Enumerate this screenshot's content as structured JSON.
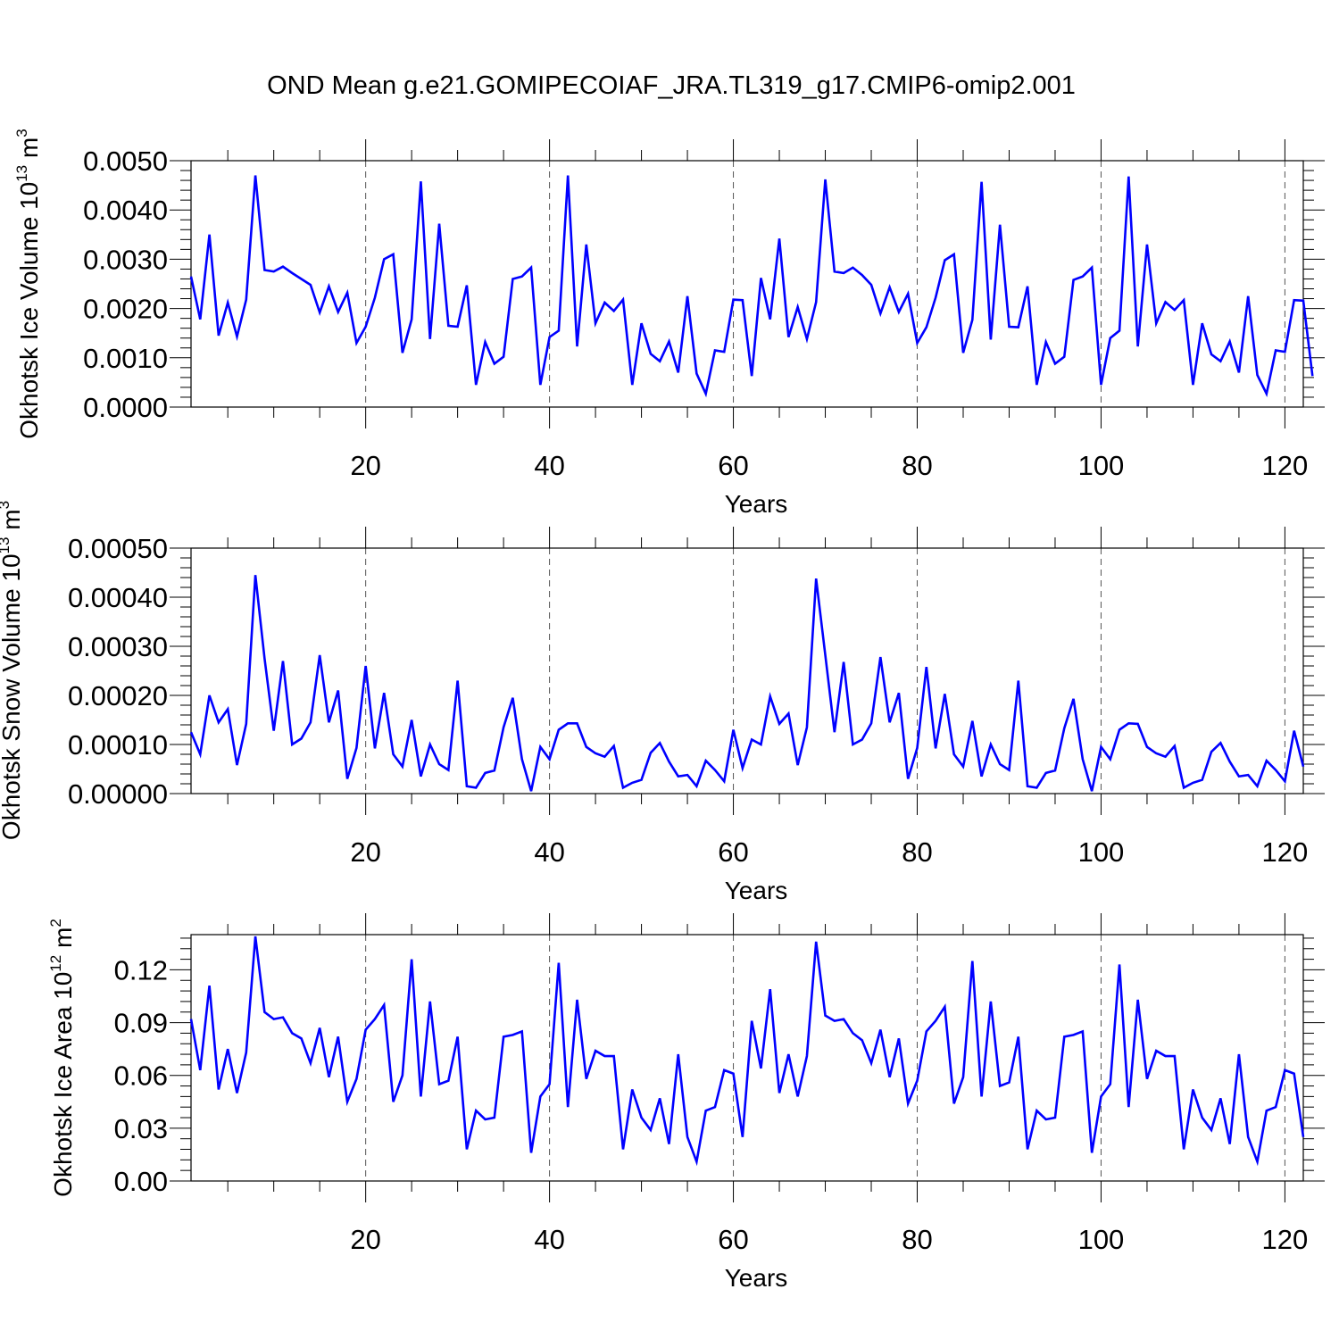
{
  "title": "OND Mean g.e21.GOMIPECOIAF_JRA.TL319_g17.CMIP6-omip2.001",
  "colors": {
    "series": "#0000ff",
    "axes": "#000000",
    "grid": "#555555"
  },
  "chart_data": [
    {
      "type": "line",
      "ylabel": {
        "main": "Okhotsk Ice Volume 10",
        "exp": "13",
        "unit": " m",
        "unit_exp": "3"
      },
      "xlabel": "Years",
      "x_start": 1,
      "xlim": [
        1,
        122
      ],
      "ylim": [
        0,
        0.005
      ],
      "yticks": [
        "0.0000",
        "0.0010",
        "0.0020",
        "0.0030",
        "0.0040",
        "0.0050"
      ],
      "xticks": [
        "20",
        "40",
        "60",
        "80",
        "100",
        "120"
      ],
      "grid": "x-dashed",
      "values": [
        0.00265,
        0.00178,
        0.0035,
        0.00145,
        0.00212,
        0.00143,
        0.00218,
        0.0047,
        0.00278,
        0.00275,
        0.00285,
        0.00272,
        0.0026,
        0.00248,
        0.00192,
        0.00245,
        0.00193,
        0.00232,
        0.0013,
        0.00163,
        0.00222,
        0.003,
        0.0031,
        0.0011,
        0.00178,
        0.00458,
        0.00138,
        0.00372,
        0.00165,
        0.00163,
        0.00247,
        0.00045,
        0.00132,
        0.00088,
        0.00102,
        0.0026,
        0.00265,
        0.00283,
        0.00045,
        0.00142,
        0.00155,
        0.0047,
        0.00123,
        0.0033,
        0.0017,
        0.00212,
        0.00195,
        0.00218,
        0.00045,
        0.0017,
        0.00108,
        0.00093,
        0.00133,
        0.0007,
        0.00225,
        0.00068,
        0.00027,
        0.00115,
        0.00112,
        0.00218,
        0.00217,
        0.00063,
        0.00262,
        0.00178,
        0.00342,
        0.00142,
        0.00203,
        0.00138,
        0.00213,
        0.00462,
        0.00275,
        0.00272,
        0.00283,
        0.00268,
        0.00248,
        0.0019,
        0.00243,
        0.00193,
        0.0023,
        0.0013,
        0.00162,
        0.00222,
        0.00298,
        0.0031,
        0.0011,
        0.00177,
        0.00457,
        0.00137,
        0.0037,
        0.00163,
        0.00162,
        0.00245,
        0.00045,
        0.00132,
        0.00088,
        0.00102,
        0.00258,
        0.00265,
        0.00283,
        0.00045,
        0.0014,
        0.00155,
        0.00468,
        0.00123,
        0.0033,
        0.0017,
        0.00213,
        0.00197,
        0.00217,
        0.00045,
        0.0017,
        0.00107,
        0.00093,
        0.00133,
        0.0007,
        0.00225,
        0.00065,
        0.00027,
        0.00115,
        0.00112,
        0.00217,
        0.00216,
        0.00063
      ]
    },
    {
      "type": "line",
      "ylabel": {
        "main": "Okhotsk Snow Volume 10",
        "exp": "13",
        "unit": " m",
        "unit_exp": "3"
      },
      "xlabel": "Years",
      "x_start": 1,
      "xlim": [
        1,
        122
      ],
      "ylim": [
        0,
        0.0005
      ],
      "yticks": [
        "0.00000",
        "0.00010",
        "0.00020",
        "0.00030",
        "0.00040",
        "0.00050"
      ],
      "xticks": [
        "20",
        "40",
        "60",
        "80",
        "100",
        "120"
      ],
      "grid": "x-dashed",
      "values": [
        0.000125,
        8e-05,
        0.0002,
        0.000145,
        0.000172,
        5.8e-05,
        0.000142,
        0.000445,
        0.000275,
        0.000128,
        0.00027,
        0.0001,
        0.000112,
        0.000145,
        0.000282,
        0.000145,
        0.00021,
        3e-05,
        9.3e-05,
        0.00026,
        9.2e-05,
        0.000205,
        8e-05,
        5.5e-05,
        0.00015,
        3.5e-05,
        0.0001,
        6e-05,
        4.8e-05,
        0.00023,
        1.5e-05,
        1.2e-05,
        4.2e-05,
        4.7e-05,
        0.000135,
        0.000195,
        7e-05,
        5e-06,
        9.5e-05,
        7e-05,
        0.00013,
        0.000143,
        0.000143,
        9.5e-05,
        8.2e-05,
        7.5e-05,
        9.7e-05,
        1.2e-05,
        2.2e-05,
        2.8e-05,
        8.3e-05,
        0.000103,
        6.5e-05,
        3.5e-05,
        3.8e-05,
        1.5e-05,
        6.7e-05,
        4.8e-05,
        2.5e-05,
        0.00013,
        5.2e-05,
        0.00011,
        0.0001,
        0.000198,
        0.000142,
        0.000163,
        5.8e-05,
        0.000135,
        0.000438,
        0.000282,
        0.000125,
        0.000268,
        0.0001,
        0.00011,
        0.000143,
        0.000278,
        0.000145,
        0.000205,
        3e-05,
        9.3e-05,
        0.000258,
        9.2e-05,
        0.000203,
        8e-05,
        5.5e-05,
        0.000148,
        3.5e-05,
        0.0001,
        6e-05,
        4.8e-05,
        0.00023,
        1.5e-05,
        1.2e-05,
        4.2e-05,
        4.7e-05,
        0.000133,
        0.000193,
        7e-05,
        5e-06,
        9.5e-05,
        7e-05,
        0.00013,
        0.000143,
        0.000142,
        9.5e-05,
        8.2e-05,
        7.5e-05,
        9.7e-05,
        1.2e-05,
        2.2e-05,
        2.8e-05,
        8.5e-05,
        0.000103,
        6.5e-05,
        3.5e-05,
        3.8e-05,
        1.5e-05,
        6.7e-05,
        4.8e-05,
        2.5e-05,
        0.000128,
        5.5e-05
      ]
    },
    {
      "type": "line",
      "ylabel": {
        "main": "Okhotsk Ice Area 10",
        "exp": "12",
        "unit": " m",
        "unit_exp": "2"
      },
      "xlabel": "Years",
      "x_start": 1,
      "xlim": [
        1,
        122
      ],
      "ylim": [
        0,
        0.14
      ],
      "yticks": [
        "0.00",
        "0.03",
        "0.06",
        "0.09",
        "0.12"
      ],
      "ytick_values": [
        0,
        0.03,
        0.06,
        0.09,
        0.12
      ],
      "xticks": [
        "20",
        "40",
        "60",
        "80",
        "100",
        "120"
      ],
      "grid": "x-dashed",
      "values": [
        0.092,
        0.063,
        0.111,
        0.052,
        0.075,
        0.05,
        0.073,
        0.139,
        0.096,
        0.092,
        0.093,
        0.084,
        0.081,
        0.067,
        0.087,
        0.059,
        0.082,
        0.045,
        0.058,
        0.086,
        0.092,
        0.1,
        0.045,
        0.06,
        0.126,
        0.048,
        0.102,
        0.055,
        0.057,
        0.082,
        0.018,
        0.04,
        0.035,
        0.036,
        0.082,
        0.083,
        0.085,
        0.016,
        0.048,
        0.055,
        0.124,
        0.042,
        0.103,
        0.058,
        0.074,
        0.071,
        0.071,
        0.018,
        0.052,
        0.036,
        0.029,
        0.047,
        0.021,
        0.072,
        0.025,
        0.011,
        0.04,
        0.042,
        0.063,
        0.061,
        0.025,
        0.091,
        0.064,
        0.109,
        0.05,
        0.072,
        0.048,
        0.071,
        0.136,
        0.094,
        0.091,
        0.092,
        0.084,
        0.08,
        0.067,
        0.086,
        0.059,
        0.081,
        0.044,
        0.057,
        0.085,
        0.091,
        0.099,
        0.044,
        0.059,
        0.125,
        0.048,
        0.102,
        0.054,
        0.056,
        0.082,
        0.018,
        0.04,
        0.035,
        0.036,
        0.082,
        0.083,
        0.085,
        0.016,
        0.048,
        0.055,
        0.123,
        0.042,
        0.103,
        0.058,
        0.074,
        0.071,
        0.071,
        0.018,
        0.052,
        0.036,
        0.029,
        0.047,
        0.021,
        0.072,
        0.025,
        0.011,
        0.04,
        0.042,
        0.063,
        0.061,
        0.025
      ]
    }
  ]
}
